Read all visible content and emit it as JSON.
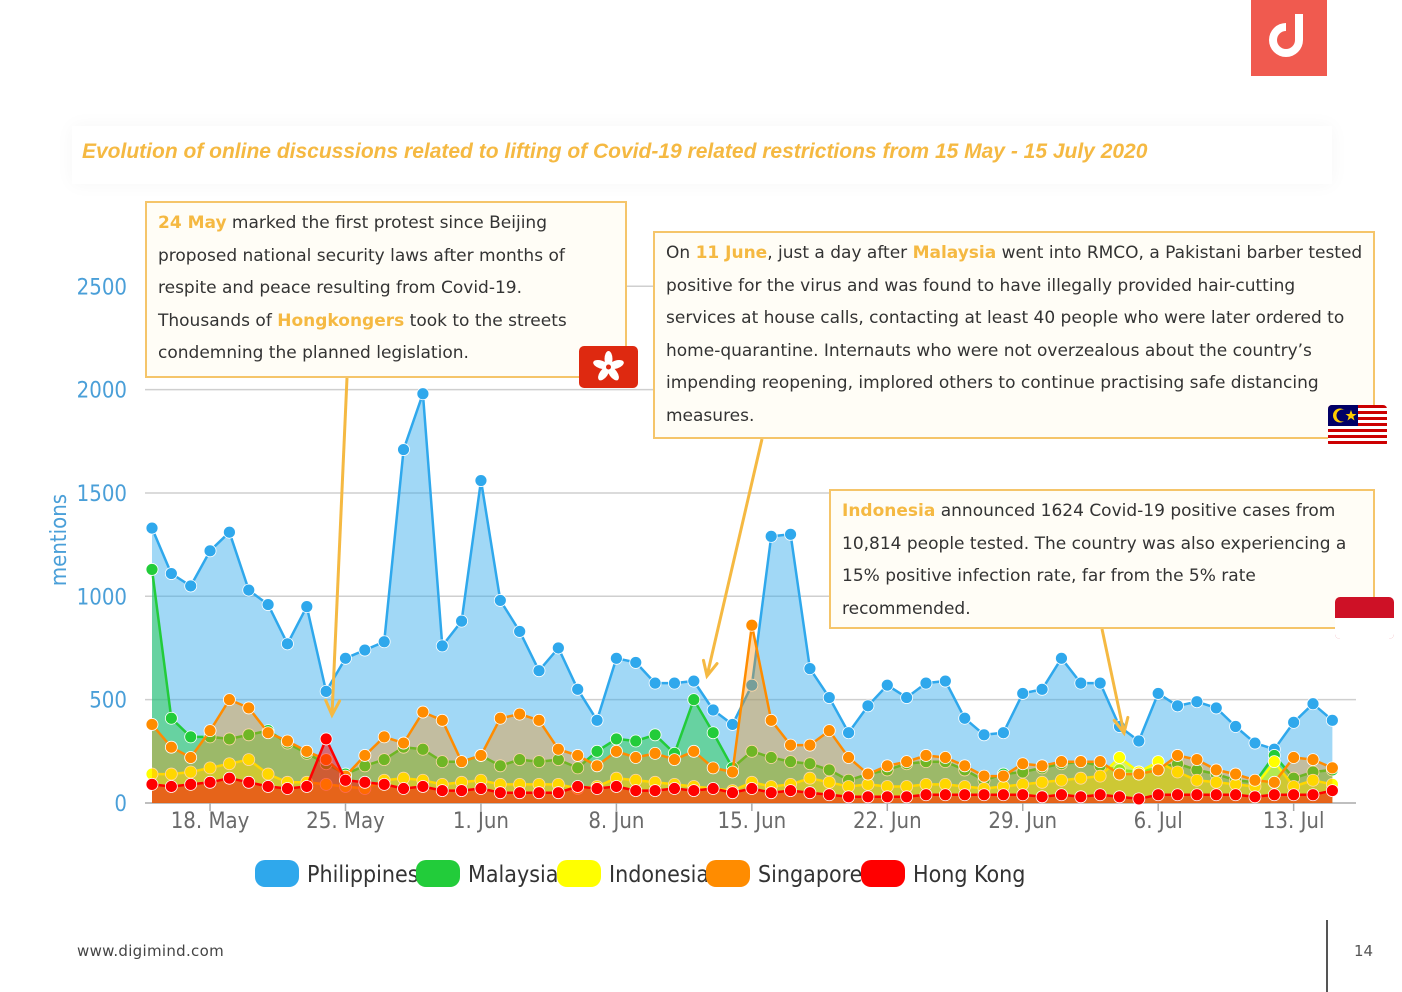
{
  "title": "Evolution of online discussions related to lifting of Covid-19 related restrictions from 15 May - 15 July 2020",
  "colors": {
    "accent": "#f5b942",
    "brand": "#f05a4f",
    "philippines": "#2fa8ec",
    "malaysia": "#22cc3a",
    "indonesia": "#ffff00",
    "singapore": "#ff8c00",
    "hong_kong": "#ff0000"
  },
  "chart_data": {
    "type": "area",
    "ylabel": "mentions",
    "ylim": [
      0,
      2500
    ],
    "yticks": [
      0,
      500,
      1000,
      1500,
      2000,
      2500
    ],
    "x_start": "15 May",
    "x_end": "15 Jul",
    "xtick_labels": [
      {
        "label": "18. May",
        "day": 3
      },
      {
        "label": "25. May",
        "day": 10
      },
      {
        "label": "1. Jun",
        "day": 17
      },
      {
        "label": "8. Jun",
        "day": 24
      },
      {
        "label": "15. Jun",
        "day": 31
      },
      {
        "label": "22. Jun",
        "day": 38
      },
      {
        "label": "29. Jun",
        "day": 45
      },
      {
        "label": "6. Jul",
        "day": 52
      },
      {
        "label": "13. Jul",
        "day": 59
      }
    ],
    "series": [
      {
        "name": "Philippines",
        "color": "#2fa8ec",
        "values": [
          1330,
          1110,
          1050,
          1220,
          1310,
          1030,
          960,
          770,
          950,
          540,
          700,
          740,
          780,
          1710,
          1980,
          760,
          880,
          1560,
          980,
          830,
          640,
          750,
          550,
          400,
          700,
          680,
          580,
          580,
          590,
          450,
          380,
          570,
          1290,
          1300,
          650,
          510,
          340,
          470,
          570,
          510,
          580,
          590,
          410,
          330,
          340,
          530,
          550,
          700,
          580,
          580,
          370,
          300,
          530,
          470,
          490,
          460,
          370,
          290,
          260,
          390,
          480,
          400
        ]
      },
      {
        "name": "Malaysia",
        "color": "#22cc3a",
        "values": [
          1130,
          410,
          320,
          320,
          310,
          330,
          350,
          290,
          240,
          190,
          140,
          180,
          210,
          270,
          260,
          200,
          200,
          230,
          180,
          210,
          200,
          210,
          170,
          250,
          310,
          300,
          330,
          240,
          500,
          340,
          170,
          250,
          220,
          200,
          190,
          160,
          110,
          140,
          160,
          190,
          200,
          200,
          160,
          110,
          140,
          150,
          170,
          190,
          200,
          180,
          160,
          150,
          170,
          190,
          160,
          140,
          110,
          100,
          230,
          120,
          150,
          160
        ]
      },
      {
        "name": "Indonesia",
        "color": "#ffff00",
        "values": [
          140,
          140,
          150,
          170,
          190,
          210,
          140,
          100,
          100,
          90,
          80,
          70,
          110,
          120,
          110,
          90,
          100,
          110,
          90,
          90,
          90,
          90,
          70,
          80,
          120,
          110,
          100,
          90,
          80,
          70,
          60,
          100,
          80,
          90,
          120,
          100,
          80,
          90,
          80,
          80,
          90,
          90,
          80,
          70,
          80,
          90,
          100,
          110,
          120,
          130,
          220,
          150,
          200,
          150,
          110,
          100,
          90,
          80,
          200,
          80,
          110,
          90
        ]
      },
      {
        "name": "Singapore",
        "color": "#ff8c00",
        "values": [
          380,
          270,
          220,
          350,
          500,
          460,
          340,
          300,
          250,
          210,
          130,
          230,
          320,
          290,
          440,
          400,
          200,
          230,
          410,
          430,
          400,
          260,
          230,
          180,
          250,
          220,
          240,
          210,
          250,
          170,
          150,
          860,
          400,
          280,
          280,
          350,
          220,
          140,
          180,
          200,
          230,
          220,
          180,
          130,
          130,
          190,
          180,
          200,
          200,
          200,
          140,
          140,
          160,
          230,
          210,
          160,
          140,
          110,
          100,
          220,
          210,
          170
        ]
      },
      {
        "name": "Hong Kong",
        "color": "#ff0000",
        "values": [
          90,
          80,
          90,
          100,
          120,
          100,
          80,
          70,
          80,
          310,
          110,
          100,
          90,
          70,
          80,
          60,
          60,
          70,
          50,
          50,
          50,
          50,
          80,
          70,
          80,
          60,
          60,
          70,
          60,
          70,
          50,
          70,
          50,
          60,
          50,
          40,
          30,
          30,
          30,
          30,
          40,
          40,
          40,
          40,
          40,
          40,
          30,
          40,
          30,
          40,
          30,
          20,
          40,
          40,
          40,
          40,
          40,
          30,
          40,
          40,
          40,
          60
        ]
      }
    ]
  },
  "callouts": {
    "hk": {
      "hl1": "24 May",
      "t1": " marked the first protest since Beijing proposed national security laws after months of respite and peace resulting from Covid-19. Thousands of ",
      "hl2": "Hongkongers",
      "t2": " took to the streets condemning the planned legislation."
    },
    "my": {
      "t0": "On ",
      "hl1": "11 June",
      "t1": ",  just a day after ",
      "hl2": "Malaysia",
      "t2": " went into RMCO, a Pakistani barber tested positive for the virus and was found to have illegally provided hair-cutting services at house calls, contacting at least 40 people who were later ordered to home-quarantine. Internauts who were not overzealous about the country’s impending reopening, implored others to continue practising safe distancing measures."
    },
    "id": {
      "hl1": "Indonesia",
      "t1": " announced 1624 Covid-19 positive cases from 10,814 people tested. The country was also experiencing a 15% positive infection rate, far from the 5% rate recommended."
    }
  },
  "footer": {
    "url": "www.digimind.com",
    "page": "14"
  }
}
